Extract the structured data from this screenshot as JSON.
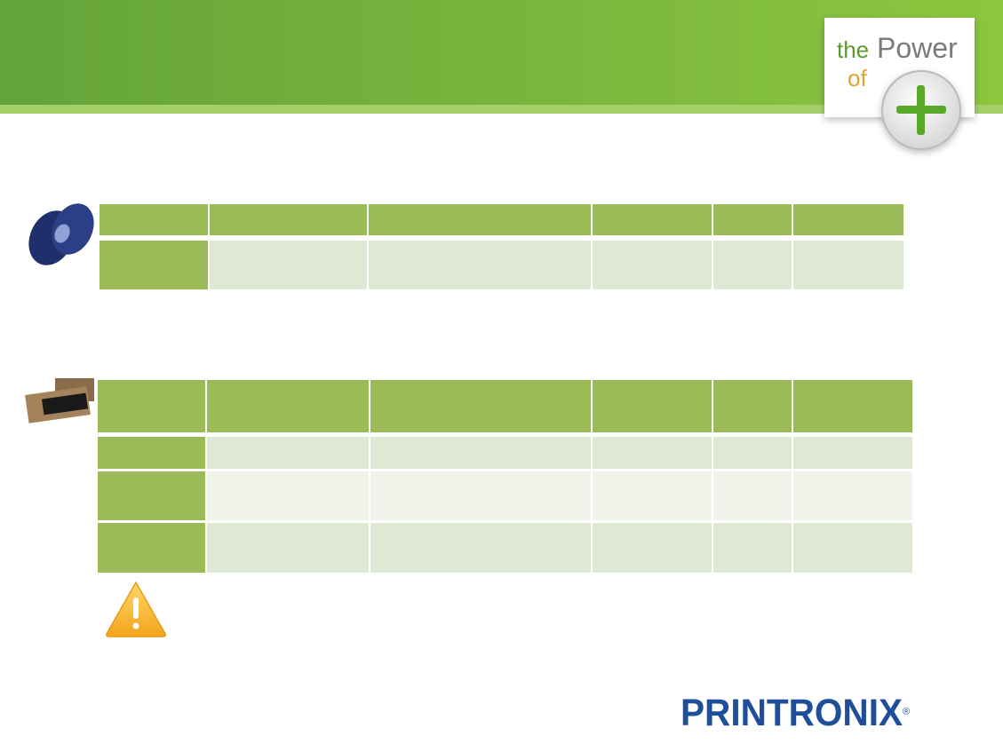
{
  "logo": {
    "the": "the",
    "power": "Power",
    "of": "of"
  },
  "brand": {
    "name": "PRINTRONIX",
    "mark": "®"
  }
}
